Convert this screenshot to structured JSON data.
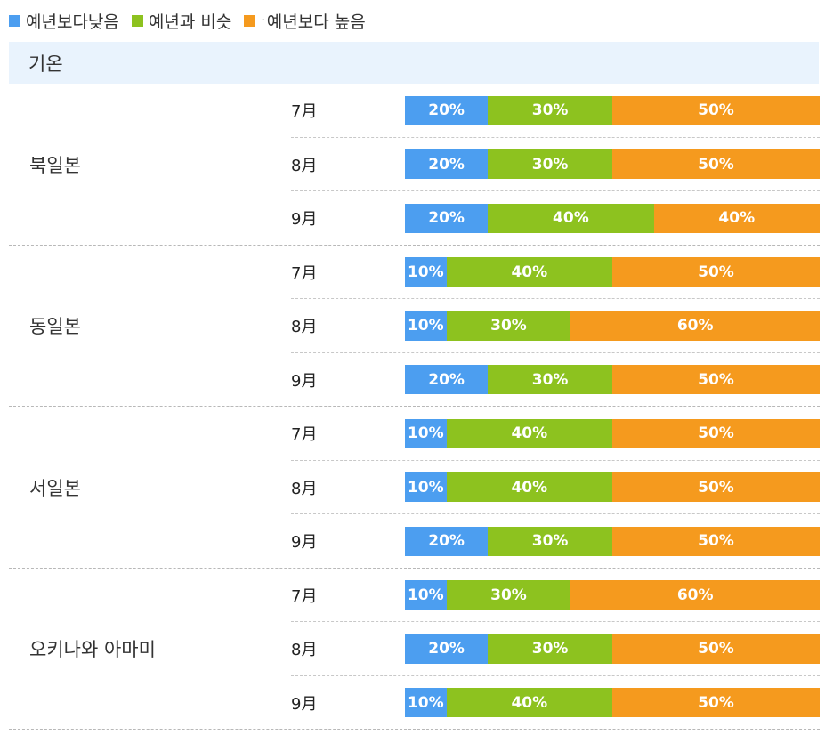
{
  "legend": [
    {
      "label": "예년보다낮음",
      "color": "#4c9ef0"
    },
    {
      "label": "예년과 비슷",
      "color": "#8dc21f"
    },
    {
      "label": "예년보다 높음",
      "color": "#f59a1e"
    }
  ],
  "header": {
    "title": "기온"
  },
  "chart_data": {
    "type": "bar",
    "stacked": true,
    "orientation": "horizontal",
    "value_unit": "%",
    "categories": [
      "7月",
      "8月",
      "9月"
    ],
    "series_names": [
      "예년보다낮음",
      "예년과 비슷",
      "예년보다 높음"
    ],
    "groups": [
      {
        "region": "북일본",
        "rows": [
          {
            "month": "7月",
            "values": [
              20,
              30,
              50
            ]
          },
          {
            "month": "8月",
            "values": [
              20,
              30,
              50
            ]
          },
          {
            "month": "9月",
            "values": [
              20,
              40,
              40
            ]
          }
        ]
      },
      {
        "region": "동일본",
        "rows": [
          {
            "month": "7月",
            "values": [
              10,
              40,
              50
            ]
          },
          {
            "month": "8月",
            "values": [
              10,
              30,
              60
            ]
          },
          {
            "month": "9月",
            "values": [
              20,
              30,
              50
            ]
          }
        ]
      },
      {
        "region": "서일본",
        "rows": [
          {
            "month": "7月",
            "values": [
              10,
              40,
              50
            ]
          },
          {
            "month": "8月",
            "values": [
              10,
              40,
              50
            ]
          },
          {
            "month": "9月",
            "values": [
              20,
              30,
              50
            ]
          }
        ]
      },
      {
        "region": "오키나와 아마미",
        "rows": [
          {
            "month": "7月",
            "values": [
              10,
              30,
              60
            ]
          },
          {
            "month": "8月",
            "values": [
              20,
              30,
              50
            ]
          },
          {
            "month": "9月",
            "values": [
              10,
              40,
              50
            ]
          }
        ]
      }
    ]
  }
}
